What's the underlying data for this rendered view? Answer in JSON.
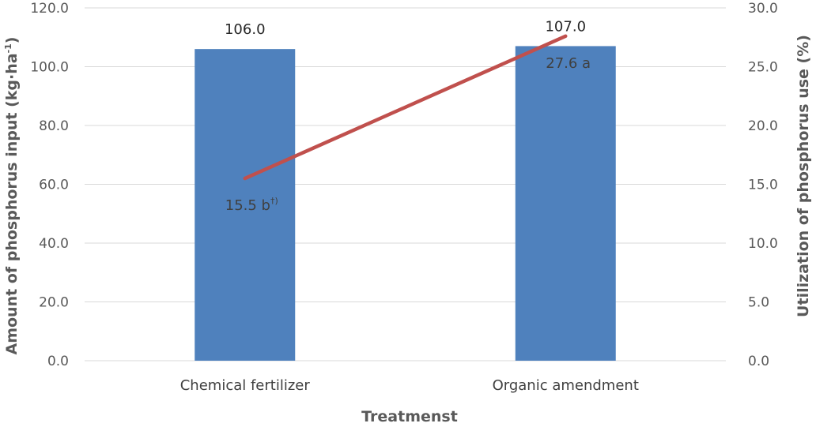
{
  "chart_data": {
    "type": "bar",
    "categories": [
      "Chemical fertilizer",
      "Organic amendment"
    ],
    "xlabel": "Treatmenst",
    "ylabel_left": {
      "main": "Amount of phosphorus input (kg·ha",
      "sup": "-1",
      "end": ")"
    },
    "ylabel_right": "Utilization of phosphorus use (%)",
    "ylim_left": [
      0,
      120
    ],
    "ylim_right": [
      0,
      30
    ],
    "yticks_left": [
      "0.0",
      "20.0",
      "40.0",
      "60.0",
      "80.0",
      "100.0",
      "120.0"
    ],
    "yticks_right": [
      "0.0",
      "5.0",
      "10.0",
      "15.0",
      "20.0",
      "25.0",
      "30.0"
    ],
    "grid": true,
    "legend": false,
    "series": [
      {
        "kind": "bar",
        "axis": "left",
        "values": [
          106.0,
          107.0
        ],
        "labels": [
          "106.0",
          "107.0"
        ],
        "color": "#4f81bd"
      },
      {
        "kind": "line",
        "axis": "right",
        "values": [
          15.5,
          27.6
        ],
        "labels": [
          {
            "text": "15.5 b",
            "sup": "†)"
          },
          {
            "text": "27.6 a",
            "sup": ""
          }
        ],
        "color": "#c0504d"
      }
    ]
  }
}
